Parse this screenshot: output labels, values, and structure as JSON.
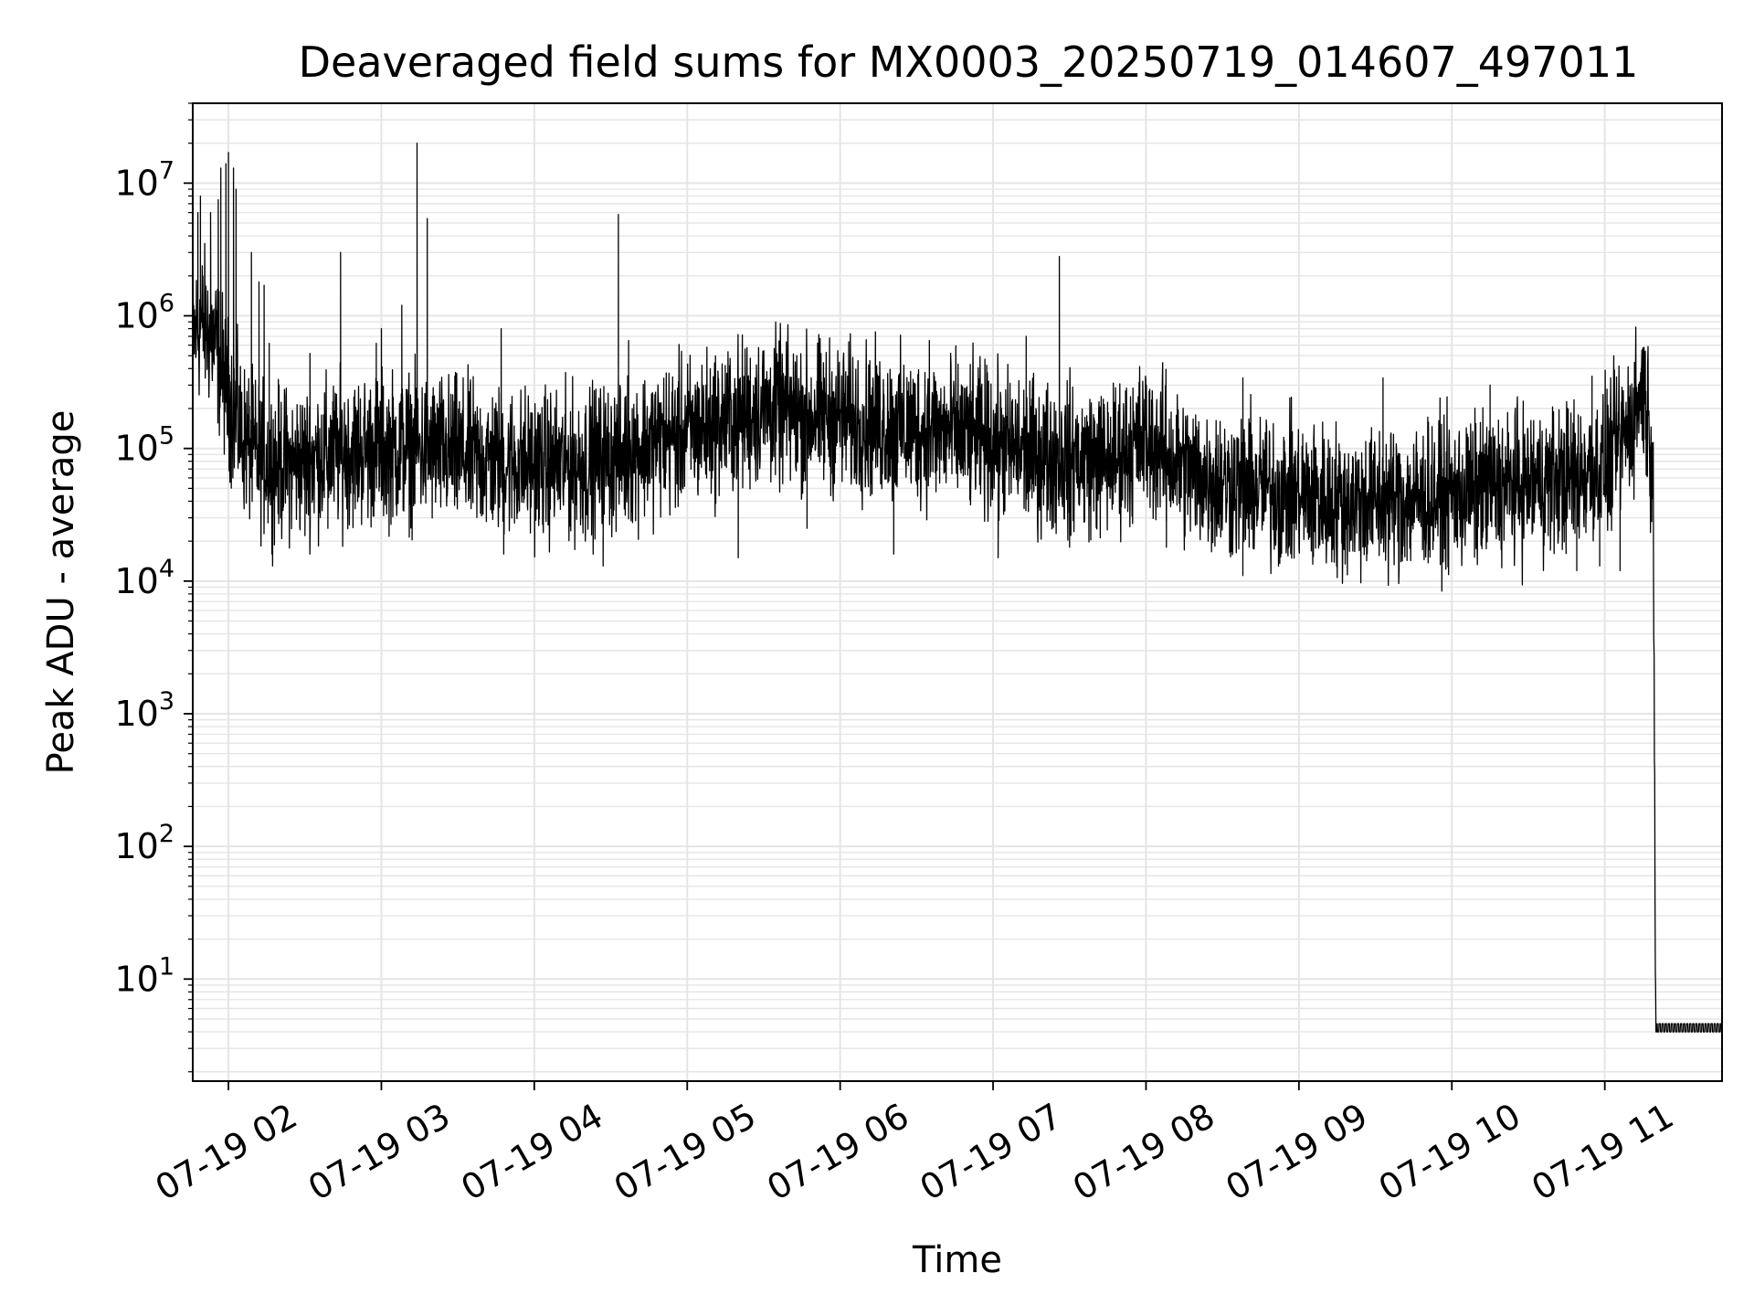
{
  "chart_data": {
    "type": "line",
    "title": "Deaveraged field sums for MX0003_20250719_014607_497011",
    "xlabel": "Time",
    "ylabel": "Peak ADU - average",
    "yscale": "log",
    "ylim": [
      1.7,
      40000000
    ],
    "xlim": [
      "07-19 01:46",
      "07-19 11:46"
    ],
    "grid": true,
    "line_color": "#000000",
    "grid_color": "#e5e5e5",
    "x_ticks": [
      "07-19 02",
      "07-19 03",
      "07-19 04",
      "07-19 05",
      "07-19 06",
      "07-19 07",
      "07-19 08",
      "07-19 09",
      "07-19 10",
      "07-19 11"
    ],
    "y_ticks": [
      {
        "base": "10",
        "exp": "1"
      },
      {
        "base": "10",
        "exp": "2"
      },
      {
        "base": "10",
        "exp": "3"
      },
      {
        "base": "10",
        "exp": "4"
      },
      {
        "base": "10",
        "exp": "5"
      },
      {
        "base": "10",
        "exp": "6"
      },
      {
        "base": "10",
        "exp": "7"
      }
    ],
    "series": [
      {
        "points": [
          [
            "07-19 01:46",
            700000
          ],
          [
            "07-19 01:50",
            900000
          ],
          [
            "07-19 01:55",
            600000
          ],
          [
            "07-19 02:00",
            250000
          ],
          [
            "07-19 02:05",
            130000
          ],
          [
            "07-19 02:10",
            90000
          ],
          [
            "07-19 02:15",
            80000
          ],
          [
            "07-19 02:25",
            75000
          ],
          [
            "07-19 02:35",
            85000
          ],
          [
            "07-19 02:45",
            95000
          ],
          [
            "07-19 03:00",
            100000
          ],
          [
            "07-19 03:15",
            100000
          ],
          [
            "07-19 03:30",
            90000
          ],
          [
            "07-19 03:45",
            80000
          ],
          [
            "07-19 04:00",
            75000
          ],
          [
            "07-19 04:15",
            75000
          ],
          [
            "07-19 04:30",
            85000
          ],
          [
            "07-19 04:45",
            110000
          ],
          [
            "07-19 05:00",
            130000
          ],
          [
            "07-19 05:15",
            160000
          ],
          [
            "07-19 05:30",
            200000
          ],
          [
            "07-19 05:45",
            180000
          ],
          [
            "07-19 06:00",
            170000
          ],
          [
            "07-19 06:15",
            150000
          ],
          [
            "07-19 06:30",
            140000
          ],
          [
            "07-19 06:45",
            130000
          ],
          [
            "07-19 07:00",
            110000
          ],
          [
            "07-19 07:15",
            90000
          ],
          [
            "07-19 07:30",
            85000
          ],
          [
            "07-19 07:45",
            80000
          ],
          [
            "07-19 08:00",
            120000
          ],
          [
            "07-19 08:15",
            70000
          ],
          [
            "07-19 08:30",
            55000
          ],
          [
            "07-19 08:45",
            50000
          ],
          [
            "07-19 09:00",
            45000
          ],
          [
            "07-19 09:15",
            40000
          ],
          [
            "07-19 09:30",
            40000
          ],
          [
            "07-19 09:45",
            42000
          ],
          [
            "07-19 10:00",
            45000
          ],
          [
            "07-19 10:15",
            50000
          ],
          [
            "07-19 10:30",
            55000
          ],
          [
            "07-19 10:45",
            60000
          ],
          [
            "07-19 11:00",
            75000
          ],
          [
            "07-19 11:10",
            150000
          ],
          [
            "07-19 11:15",
            300000
          ],
          [
            "07-19 11:17",
            160000
          ],
          [
            "07-19 11:19",
            80000
          ],
          [
            "07-19 11:20",
            4
          ],
          [
            "07-19 11:46",
            4
          ]
        ]
      }
    ],
    "spikes": [
      [
        "07-19 01:48",
        6000000
      ],
      [
        "07-19 01:49",
        8000000
      ],
      [
        "07-19 01:53",
        6000000
      ],
      [
        "07-19 01:56",
        7500000
      ],
      [
        "07-19 01:57",
        13000000
      ],
      [
        "07-19 01:59",
        14000000
      ],
      [
        "07-19 02:00",
        17000000
      ],
      [
        "07-19 02:02",
        13000000
      ],
      [
        "07-19 02:03",
        9000000
      ],
      [
        "07-19 02:09",
        3000000
      ],
      [
        "07-19 02:12",
        1800000
      ],
      [
        "07-19 02:14",
        1700000
      ],
      [
        "07-19 02:16",
        620000
      ],
      [
        "07-19 02:32",
        520000
      ],
      [
        "07-19 02:44",
        3000000
      ],
      [
        "07-19 02:58",
        620000
      ],
      [
        "07-19 03:00",
        800000
      ],
      [
        "07-19 03:08",
        1200000
      ],
      [
        "07-19 03:14",
        20000000
      ],
      [
        "07-19 03:18",
        5400000
      ],
      [
        "07-19 03:47",
        800000
      ],
      [
        "07-19 04:33",
        5800000
      ],
      [
        "07-19 04:37",
        650000
      ],
      [
        "07-19 06:35",
        650000
      ],
      [
        "07-19 07:13",
        700000
      ],
      [
        "07-19 07:26",
        2800000
      ],
      [
        "07-19 08:38",
        340000
      ],
      [
        "07-19 09:33",
        340000
      ],
      [
        "07-19 10:15",
        300000
      ],
      [
        "07-19 10:55",
        350000
      ]
    ],
    "dips": [
      [
        "07-19 02:14",
        40000
      ],
      [
        "07-19 02:30",
        22000
      ],
      [
        "07-19 02:39",
        25000
      ],
      [
        "07-19 03:48",
        16000
      ],
      [
        "07-19 04:20",
        20000
      ],
      [
        "07-19 04:27",
        13000
      ],
      [
        "07-19 05:20",
        15000
      ],
      [
        "07-19 05:47",
        25000
      ],
      [
        "07-19 06:21",
        16000
      ],
      [
        "07-19 07:02",
        15000
      ],
      [
        "07-19 07:30",
        18000
      ],
      [
        "07-19 08:08",
        18000
      ],
      [
        "07-19 08:38",
        11000
      ],
      [
        "07-19 08:52",
        13000
      ],
      [
        "07-19 09:40",
        14000
      ],
      [
        "07-19 10:49",
        12000
      ],
      [
        "07-19 10:58",
        13000
      ],
      [
        "07-19 11:06",
        12000
      ]
    ]
  }
}
